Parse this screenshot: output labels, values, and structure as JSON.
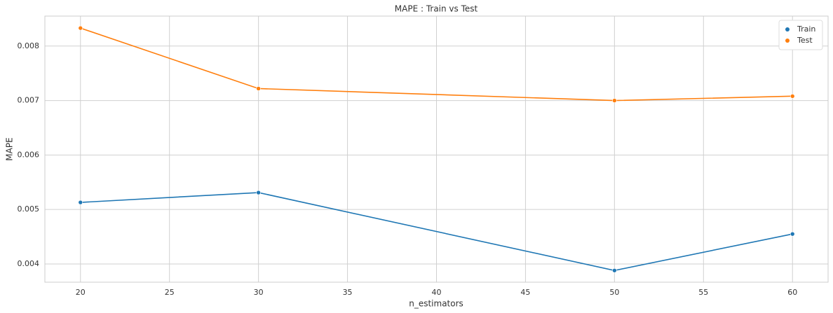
{
  "chart_data": {
    "type": "line",
    "title": "MAPE : Train vs Test",
    "x_label": "n_estimators",
    "y_label": "MAPE",
    "x": [
      20,
      30,
      50,
      60
    ],
    "series": [
      {
        "name": "Train",
        "color": "#1f77b4",
        "values": [
          0.00513,
          0.00531,
          0.00388,
          0.00455
        ]
      },
      {
        "name": "Test",
        "color": "#ff7f0e",
        "values": [
          0.00833,
          0.00722,
          0.007,
          0.00708
        ]
      }
    ],
    "xlim": [
      18,
      62
    ],
    "xticks": [
      20,
      25,
      30,
      35,
      40,
      45,
      50,
      55,
      60
    ],
    "ylim": [
      0.003665,
      0.00855
    ],
    "yticks": [
      0.004,
      0.005,
      0.006,
      0.007,
      0.008
    ],
    "grid": true,
    "legend": "upper right",
    "markers": true
  }
}
